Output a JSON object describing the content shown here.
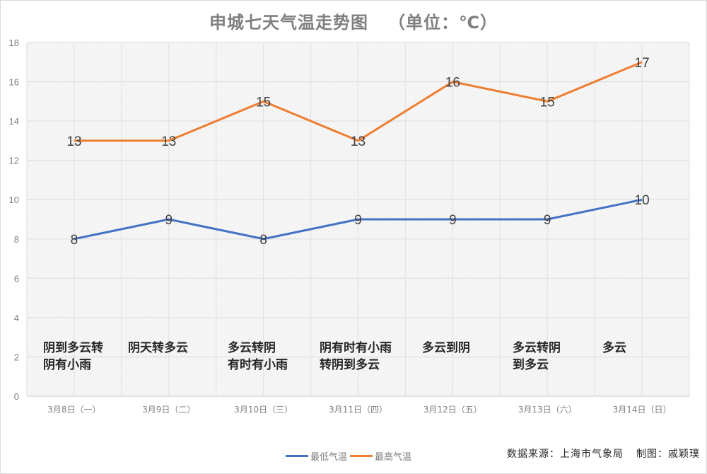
{
  "chart_data": {
    "type": "line",
    "title": "申城七天气温走势图",
    "unit_label": "（单位：℃）",
    "xlabel": "",
    "ylabel": "",
    "ylim": [
      0,
      18
    ],
    "yticks": [
      0,
      2,
      4,
      6,
      8,
      10,
      12,
      14,
      16,
      18
    ],
    "grid": true,
    "legend_position": "bottom",
    "categories": [
      "3月8日（一）",
      "3月9日（二）",
      "3月10日（三）",
      "3月11日（四）",
      "3月12日（五）",
      "3月13日（六）",
      "3月14日（日）"
    ],
    "series": [
      {
        "name": "最低气温",
        "color": "#4472c4",
        "values": [
          8,
          9,
          8,
          9,
          9,
          9,
          10
        ]
      },
      {
        "name": "最高气温",
        "color": "#ed7d31",
        "values": [
          13,
          13,
          15,
          13,
          16,
          15,
          17
        ]
      }
    ],
    "annotations": [
      [
        "阴到多云转",
        "阴有小雨"
      ],
      [
        "阴天转多云"
      ],
      [
        "多云转阴",
        "有时有小雨"
      ],
      [
        "阴有时有小雨",
        "转阴到多云"
      ],
      [
        "多云到阴"
      ],
      [
        "多云转阴",
        "到多云"
      ],
      [
        "多云"
      ]
    ]
  },
  "title": "申城七天气温走势图",
  "unit": "（单位：℃）",
  "legend": {
    "low": "最低气温",
    "high": "最高气温"
  },
  "footer": {
    "source": "数据来源：上海市气象局",
    "credit": "制图：戚颖璞"
  },
  "weather": {
    "d0": {
      "l1": "阴到多云转",
      "l2": "阴有小雨"
    },
    "d1": {
      "l1": "阴天转多云",
      "l2": ""
    },
    "d2": {
      "l1": "多云转阴",
      "l2": "有时有小雨"
    },
    "d3": {
      "l1": "阴有时有小雨",
      "l2": "转阴到多云"
    },
    "d4": {
      "l1": "多云到阴",
      "l2": ""
    },
    "d5": {
      "l1": "多云转阴",
      "l2": "到多云"
    },
    "d6": {
      "l1": "多云",
      "l2": ""
    }
  },
  "colors": {
    "low": "#4472c4",
    "high": "#ed7d31",
    "plot_bg": "#f2f2f2",
    "grid": "#e3e3e3"
  }
}
